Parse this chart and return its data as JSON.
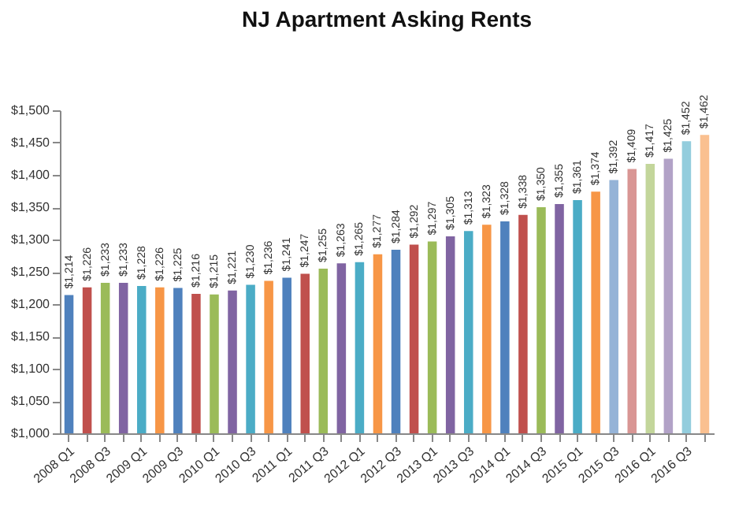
{
  "chart_data": {
    "type": "bar",
    "title": "NJ Apartment Asking Rents",
    "categories": [
      "2008 Q1",
      null,
      "2008 Q3",
      null,
      "2009 Q1",
      null,
      "2009 Q3",
      null,
      "2010 Q1",
      null,
      "2010 Q3",
      null,
      "2011 Q1",
      null,
      "2011 Q3",
      null,
      "2012 Q1",
      null,
      "2012 Q3",
      null,
      "2013 Q1",
      null,
      "2013 Q3",
      null,
      "2014 Q1",
      null,
      "2014 Q3",
      null,
      "2015 Q1",
      null,
      "2015 Q3",
      null,
      "2016 Q1",
      null,
      "2016 Q3",
      null
    ],
    "values": [
      1214,
      1226,
      1233,
      1233,
      1228,
      1226,
      1225,
      1216,
      1215,
      1221,
      1230,
      1236,
      1241,
      1247,
      1255,
      1263,
      1265,
      1277,
      1284,
      1292,
      1297,
      1305,
      1313,
      1323,
      1328,
      1338,
      1350,
      1355,
      1361,
      1374,
      1392,
      1409,
      1417,
      1425,
      1452,
      1462
    ],
    "value_labels": [
      "$1,214",
      "$1,226",
      "$1,233",
      "$1,233",
      "$1,228",
      "$1,226",
      "$1,225",
      "$1,216",
      "$1,215",
      "$1,221",
      "$1,230",
      "$1,236",
      "$1,241",
      "$1,247",
      "$1,255",
      "$1,263",
      "$1,265",
      "$1,277",
      "$1,284",
      "$1,292",
      "$1,297",
      "$1,305",
      "$1,313",
      "$1,323",
      "$1,328",
      "$1,338",
      "$1,350",
      "$1,355",
      "$1,361",
      "$1,374",
      "$1,392",
      "$1,409",
      "$1,417",
      "$1,425",
      "$1,452",
      "$1,462"
    ],
    "colors": [
      "#4f81bd",
      "#c0504d",
      "#9bbb59",
      "#8064a2",
      "#4bacc6",
      "#f79646",
      "#4f81bd",
      "#c0504d",
      "#9bbb59",
      "#8064a2",
      "#4bacc6",
      "#f79646",
      "#4f81bd",
      "#c0504d",
      "#9bbb59",
      "#8064a2",
      "#4bacc6",
      "#f79646",
      "#4f81bd",
      "#c0504d",
      "#9bbb59",
      "#8064a2",
      "#4bacc6",
      "#f79646",
      "#4f81bd",
      "#c0504d",
      "#9bbb59",
      "#8064a2",
      "#4bacc6",
      "#f79646",
      "#95b3d7",
      "#d99694",
      "#c3d69b",
      "#b2a2c7",
      "#93cddd",
      "#fac090"
    ],
    "ylim": [
      1000,
      1500
    ],
    "yticks": [
      {
        "value": 1000,
        "label": "$1,000"
      },
      {
        "value": 1050,
        "label": "$1,050"
      },
      {
        "value": 1100,
        "label": "$1,100"
      },
      {
        "value": 1150,
        "label": "$1,150"
      },
      {
        "value": 1200,
        "label": "$1,200"
      },
      {
        "value": 1250,
        "label": "$1,250"
      },
      {
        "value": 1300,
        "label": "$1,300"
      },
      {
        "value": 1350,
        "label": "$1,350"
      },
      {
        "value": 1400,
        "label": "$1,400"
      },
      {
        "value": 1450,
        "label": "$1,450"
      },
      {
        "value": 1500,
        "label": "$1,500"
      }
    ],
    "grid": false
  }
}
